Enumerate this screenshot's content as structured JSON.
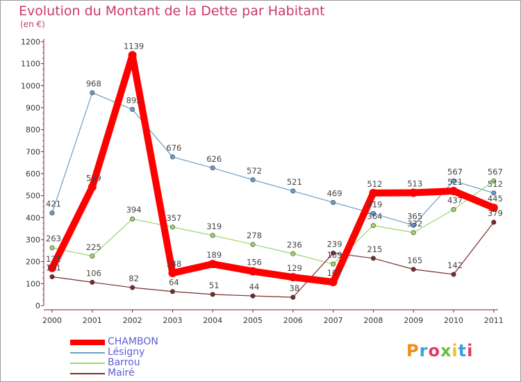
{
  "header": {
    "title": "Evolution du Montant de la Dette par Habitant",
    "unit": "(en €)"
  },
  "logo": {
    "text": "Proxiti",
    "colors": [
      "#f28c1a",
      "#3aa0d8",
      "#e23a6a",
      "#6cbf3a",
      "#f2c21a",
      "#3aa0d8",
      "#e23a6a"
    ]
  },
  "chart_data": {
    "type": "line",
    "title": "Evolution du Montant de la Dette par Habitant",
    "subtitle": "(en €)",
    "xlabel": "",
    "ylabel": "",
    "categories": [
      "2000",
      "2001",
      "2002",
      "2003",
      "2004",
      "2005",
      "2006",
      "2007",
      "2008",
      "2009",
      "2010",
      "2011"
    ],
    "ylim": [
      0,
      1200
    ],
    "yticks": [
      0,
      100,
      200,
      300,
      400,
      500,
      600,
      700,
      800,
      900,
      1000,
      1100,
      1200
    ],
    "grid": false,
    "legend_position": "bottom-left",
    "series": [
      {
        "name": "CHAMBON",
        "color": "#ff0000",
        "values": [
          171,
          539,
          1139,
          148,
          189,
          156,
          129,
          107,
          512,
          513,
          521,
          445
        ],
        "thick": true
      },
      {
        "name": "Lésigny",
        "color": "#6a9cc9",
        "values": [
          421,
          968,
          892,
          676,
          626,
          572,
          521,
          469,
          419,
          365,
          567,
          512
        ],
        "thick": false
      },
      {
        "name": "Barrou",
        "color": "#9ad66a",
        "values": [
          263,
          225,
          394,
          357,
          319,
          278,
          236,
          189,
          364,
          332,
          437,
          567
        ],
        "thick": false
      },
      {
        "name": "Mairé",
        "color": "#7a2a2a",
        "values": [
          131,
          106,
          82,
          64,
          51,
          44,
          38,
          239,
          215,
          165,
          142,
          379
        ],
        "thick": false
      }
    ]
  }
}
